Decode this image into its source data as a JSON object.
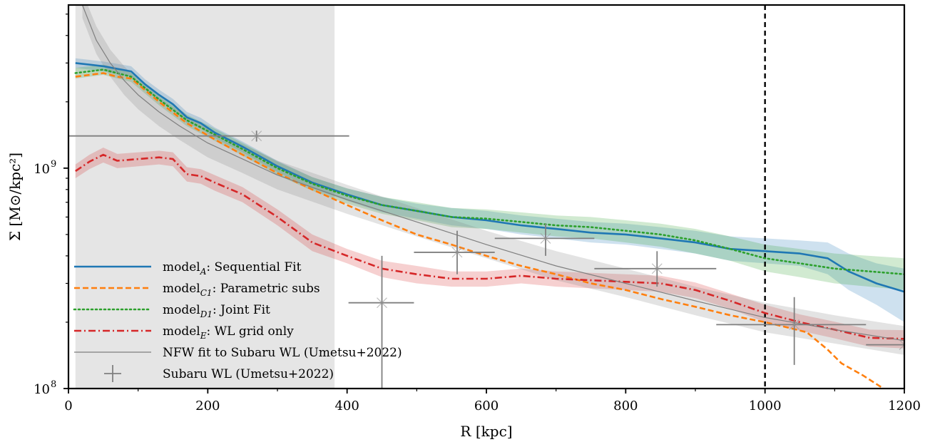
{
  "chart_data": {
    "type": "line",
    "xlabel": "R [kpc]",
    "ylabel": "Σ [M⊙/kpc²]",
    "xlim": [
      0,
      1200
    ],
    "ylim": [
      100000000,
      5500000000
    ],
    "yscale": "log",
    "x_ticks": [
      {
        "value": 0,
        "label": "0"
      },
      {
        "value": 200,
        "label": "200"
      },
      {
        "value": 400,
        "label": "400"
      },
      {
        "value": 600,
        "label": "600"
      },
      {
        "value": 800,
        "label": "800"
      },
      {
        "value": 1000,
        "label": "1000"
      },
      {
        "value": 1200,
        "label": "1200"
      }
    ],
    "y_ticks": [
      {
        "value": 100000000,
        "base": "10",
        "exp": "8"
      },
      {
        "value": 1000000000,
        "base": "10",
        "exp": "9"
      }
    ],
    "shaded_region_x": [
      10,
      382
    ],
    "vline_x": 1000,
    "legend_position": "lower-left",
    "series": [
      {
        "id": "A",
        "name": "model",
        "name_sub": "A",
        "name_rest": ": Sequential Fit",
        "color": "#1f77b4",
        "style": "solid",
        "x": [
          10,
          50,
          90,
          110,
          130,
          150,
          170,
          190,
          210,
          250,
          300,
          350,
          400,
          450,
          500,
          550,
          600,
          650,
          700,
          750,
          800,
          850,
          900,
          950,
          1000,
          1050,
          1090,
          1120,
          1160,
          1200
        ],
        "y": [
          3000000000.0,
          2900000000.0,
          2750000000.0,
          2400000000.0,
          2150000000.0,
          1950000000.0,
          1700000000.0,
          1600000000.0,
          1450000000.0,
          1250000000.0,
          1020000000.0,
          860000000.0,
          760000000.0,
          680000000.0,
          640000000.0,
          600000000.0,
          580000000.0,
          550000000.0,
          530000000.0,
          510000000.0,
          500000000.0,
          480000000.0,
          460000000.0,
          430000000.0,
          420000000.0,
          410000000.0,
          390000000.0,
          340000000.0,
          300000000.0,
          275000000.0
        ],
        "band_lo": [
          2850000000.0,
          2750000000.0,
          2600000000.0,
          2270000000.0,
          2030000000.0,
          1840000000.0,
          1600000000.0,
          1510000000.0,
          1370000000.0,
          1180000000.0,
          960000000.0,
          810000000.0,
          710000000.0,
          630000000.0,
          590000000.0,
          550000000.0,
          530000000.0,
          500000000.0,
          480000000.0,
          460000000.0,
          450000000.0,
          430000000.0,
          410000000.0,
          380000000.0,
          370000000.0,
          360000000.0,
          330000000.0,
          280000000.0,
          240000000.0,
          200000000.0
        ],
        "band_hi": [
          3150000000.0,
          3050000000.0,
          2900000000.0,
          2530000000.0,
          2270000000.0,
          2060000000.0,
          1800000000.0,
          1690000000.0,
          1530000000.0,
          1320000000.0,
          1080000000.0,
          910000000.0,
          810000000.0,
          740000000.0,
          690000000.0,
          660000000.0,
          640000000.0,
          610000000.0,
          590000000.0,
          570000000.0,
          560000000.0,
          540000000.0,
          520000000.0,
          490000000.0,
          480000000.0,
          470000000.0,
          460000000.0,
          410000000.0,
          370000000.0,
          350000000.0
        ]
      },
      {
        "id": "C1",
        "name": "model",
        "name_sub": "C1",
        "name_rest": ": Parametric subs",
        "color": "#ff7f0e",
        "style": "dashed",
        "x": [
          10,
          50,
          70,
          90,
          130,
          170,
          210,
          250,
          300,
          350,
          400,
          450,
          500,
          550,
          600,
          650,
          700,
          750,
          800,
          850,
          900,
          950,
          1000,
          1030,
          1060,
          1090,
          1110,
          1140,
          1170,
          1200
        ],
        "y": [
          2600000000.0,
          2700000000.0,
          2600000000.0,
          2550000000.0,
          2000000000.0,
          1600000000.0,
          1350000000.0,
          1150000000.0,
          950000000.0,
          800000000.0,
          680000000.0,
          580000000.0,
          500000000.0,
          450000000.0,
          400000000.0,
          360000000.0,
          330000000.0,
          300000000.0,
          280000000.0,
          255000000.0,
          235000000.0,
          215000000.0,
          200000000.0,
          190000000.0,
          180000000.0,
          150000000.0,
          130000000.0,
          115000000.0,
          100000000.0,
          90000000.0
        ]
      },
      {
        "id": "D1",
        "name": "model",
        "name_sub": "D1",
        "name_rest": ": Joint Fit",
        "color": "#2ca02c",
        "style": "dotted",
        "x": [
          10,
          50,
          90,
          130,
          170,
          210,
          250,
          300,
          350,
          400,
          450,
          500,
          550,
          600,
          650,
          700,
          750,
          800,
          850,
          900,
          950,
          1000,
          1050,
          1100,
          1150,
          1200
        ],
        "y": [
          2700000000.0,
          2800000000.0,
          2600000000.0,
          2050000000.0,
          1650000000.0,
          1420000000.0,
          1220000000.0,
          1000000000.0,
          850000000.0,
          750000000.0,
          680000000.0,
          640000000.0,
          600000000.0,
          590000000.0,
          570000000.0,
          550000000.0,
          540000000.0,
          520000000.0,
          500000000.0,
          470000000.0,
          430000000.0,
          390000000.0,
          370000000.0,
          350000000.0,
          340000000.0,
          330000000.0
        ],
        "band_lo": [
          2550000000.0,
          2650000000.0,
          2460000000.0,
          1930000000.0,
          1550000000.0,
          1330000000.0,
          1140000000.0,
          930000000.0,
          790000000.0,
          690000000.0,
          620000000.0,
          580000000.0,
          540000000.0,
          530000000.0,
          510000000.0,
          490000000.0,
          480000000.0,
          460000000.0,
          440000000.0,
          410000000.0,
          380000000.0,
          340000000.0,
          320000000.0,
          300000000.0,
          290000000.0,
          280000000.0
        ],
        "band_hi": [
          2850000000.0,
          2950000000.0,
          2740000000.0,
          2170000000.0,
          1750000000.0,
          1510000000.0,
          1300000000.0,
          1070000000.0,
          910000000.0,
          810000000.0,
          740000000.0,
          700000000.0,
          660000000.0,
          650000000.0,
          630000000.0,
          610000000.0,
          600000000.0,
          580000000.0,
          560000000.0,
          530000000.0,
          490000000.0,
          450000000.0,
          430000000.0,
          410000000.0,
          400000000.0,
          390000000.0
        ]
      },
      {
        "id": "E",
        "name": "model",
        "name_sub": "E",
        "name_rest": ": WL grid only",
        "color": "#d62728",
        "style": "dashdot",
        "x": [
          10,
          30,
          50,
          70,
          100,
          130,
          150,
          170,
          190,
          210,
          250,
          300,
          350,
          400,
          450,
          500,
          550,
          600,
          650,
          700,
          750,
          800,
          850,
          900,
          950,
          1000,
          1050,
          1100,
          1150,
          1200
        ],
        "y": [
          970000000.0,
          1070000000.0,
          1150000000.0,
          1080000000.0,
          1100000000.0,
          1120000000.0,
          1100000000.0,
          940000000.0,
          920000000.0,
          860000000.0,
          760000000.0,
          600000000.0,
          460000000.0,
          400000000.0,
          350000000.0,
          330000000.0,
          315000000.0,
          315000000.0,
          325000000.0,
          315000000.0,
          310000000.0,
          305000000.0,
          300000000.0,
          280000000.0,
          250000000.0,
          220000000.0,
          200000000.0,
          185000000.0,
          170000000.0,
          168000000.0
        ],
        "band_lo": [
          900000000.0,
          990000000.0,
          1060000000.0,
          1000000000.0,
          1020000000.0,
          1040000000.0,
          1020000000.0,
          870000000.0,
          850000000.0,
          790000000.0,
          700000000.0,
          550000000.0,
          420000000.0,
          370000000.0,
          320000000.0,
          300000000.0,
          290000000.0,
          290000000.0,
          300000000.0,
          290000000.0,
          285000000.0,
          280000000.0,
          275000000.0,
          257000000.0,
          230000000.0,
          200000000.0,
          183000000.0,
          169000000.0,
          155000000.0,
          152000000.0
        ],
        "band_hi": [
          1040000000.0,
          1150000000.0,
          1240000000.0,
          1160000000.0,
          1180000000.0,
          1200000000.0,
          1180000000.0,
          1010000000.0,
          990000000.0,
          930000000.0,
          820000000.0,
          650000000.0,
          500000000.0,
          430000000.0,
          380000000.0,
          360000000.0,
          340000000.0,
          340000000.0,
          350000000.0,
          340000000.0,
          335000000.0,
          330000000.0,
          325000000.0,
          303000000.0,
          270000000.0,
          240000000.0,
          217000000.0,
          201000000.0,
          185000000.0,
          184000000.0
        ]
      },
      {
        "id": "NFW",
        "name": "NFW fit to Subaru WL (Umetsu+2022)",
        "color": "#7f7f7f",
        "style": "solid-thin",
        "x": [
          20,
          40,
          60,
          80,
          100,
          130,
          160,
          200,
          250,
          300,
          400,
          500,
          600,
          700,
          800,
          900,
          1000,
          1100,
          1200
        ],
        "y": [
          5500000000.0,
          3800000000.0,
          3000000000.0,
          2500000000.0,
          2150000000.0,
          1800000000.0,
          1550000000.0,
          1300000000.0,
          1100000000.0,
          930000000.0,
          720000000.0,
          570000000.0,
          450000000.0,
          360000000.0,
          300000000.0,
          250000000.0,
          210000000.0,
          185000000.0,
          165000000.0
        ],
        "band_lo": [
          4800000000.0,
          3300000000.0,
          2600000000.0,
          2150000000.0,
          1850000000.0,
          1550000000.0,
          1340000000.0,
          1120000000.0,
          950000000.0,
          800000000.0,
          620000000.0,
          490000000.0,
          390000000.0,
          310000000.0,
          260000000.0,
          215000000.0,
          180000000.0,
          160000000.0,
          142000000.0
        ],
        "band_hi": [
          6300000000.0,
          4400000000.0,
          3450000000.0,
          2900000000.0,
          2500000000.0,
          2100000000.0,
          1800000000.0,
          1510000000.0,
          1280000000.0,
          1080000000.0,
          840000000.0,
          660000000.0,
          520000000.0,
          420000000.0,
          350000000.0,
          290000000.0,
          245000000.0,
          215000000.0,
          192000000.0
        ]
      }
    ],
    "wl_points": {
      "name": "Subaru WL (Umetsu+2022)",
      "color": "#7f7f7f",
      "points": [
        {
          "x": 270,
          "y": 1400000000.0,
          "xerr": [
            0,
            403
          ],
          "yerr": [
            1320000000.0,
            1480000000.0
          ]
        },
        {
          "x": 450,
          "y": 245000000.0,
          "xerr": [
            402,
            496
          ],
          "yerr": [
            100000000.0,
            400000000.0
          ]
        },
        {
          "x": 558,
          "y": 415000000.0,
          "xerr": [
            496,
            612
          ],
          "yerr": [
            330000000.0,
            520000000.0
          ]
        },
        {
          "x": 685,
          "y": 480000000.0,
          "xerr": [
            612,
            755
          ],
          "yerr": [
            400000000.0,
            560000000.0
          ]
        },
        {
          "x": 845,
          "y": 350000000.0,
          "xerr": [
            755,
            930
          ],
          "yerr": [
            290000000.0,
            420000000.0
          ]
        },
        {
          "x": 1042,
          "y": 195000000.0,
          "xerr": [
            930,
            1145
          ],
          "yerr": [
            128000000.0,
            260000000.0
          ]
        },
        {
          "x": 1200,
          "y": 158000000.0,
          "xerr": [
            1145,
            1200
          ],
          "yerr": [
            158000000.0,
            158000000.0
          ]
        }
      ]
    }
  }
}
